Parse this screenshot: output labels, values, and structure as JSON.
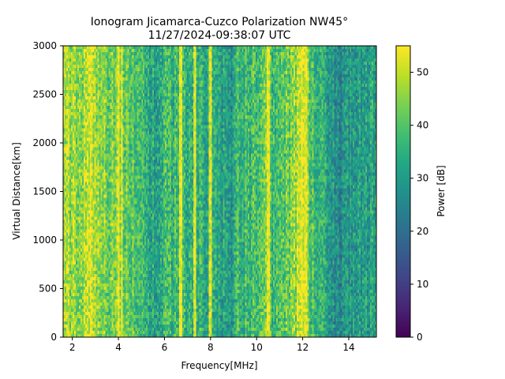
{
  "chart_data": {
    "type": "heatmap",
    "title": [
      "Ionogram Jicamarca-Cuzco Polarization NW45°",
      "11/27/2024-09:38:07 UTC"
    ],
    "xlabel": "Frequency[MHz]",
    "ylabel": "Virtual Distance[km]",
    "xlim": [
      1.6,
      15.2
    ],
    "ylim": [
      0,
      3000
    ],
    "xticks": [
      2,
      4,
      6,
      8,
      10,
      12,
      14
    ],
    "xtick_labels": [
      "2",
      "4",
      "6",
      "8",
      "10",
      "12",
      "14"
    ],
    "yticks": [
      0,
      500,
      1000,
      1500,
      2000,
      2500,
      3000
    ],
    "ytick_labels": [
      "0",
      "500",
      "1000",
      "1500",
      "2000",
      "2500",
      "3000"
    ],
    "colorbar": {
      "label": "Power [dB]",
      "range": [
        0,
        55
      ],
      "ticks": [
        0,
        10,
        20,
        30,
        40,
        50
      ],
      "tick_labels": [
        "0",
        "10",
        "20",
        "30",
        "40",
        "50"
      ],
      "colormap": "viridis"
    },
    "band_power_profile": {
      "frequency_mhz": [
        1.6,
        2.0,
        2.4,
        2.8,
        3.0,
        3.4,
        3.8,
        4.0,
        4.2,
        4.6,
        5.0,
        5.3,
        5.6,
        5.9,
        6.0,
        6.3,
        6.6,
        7.0,
        7.3,
        7.6,
        7.9,
        8.0,
        8.3,
        8.6,
        8.9,
        9.2,
        9.5,
        9.8,
        10.1,
        10.4,
        10.7,
        11.0,
        11.3,
        11.6,
        11.9,
        12.1,
        12.3,
        12.6,
        12.9,
        13.2,
        13.5,
        13.8,
        14.1,
        14.4,
        14.7,
        15.0,
        15.2
      ],
      "mean_power_db": [
        46,
        47,
        46,
        52,
        47,
        44,
        43,
        48,
        42,
        41,
        38,
        34,
        30,
        32,
        40,
        36,
        38,
        33,
        36,
        35,
        31,
        40,
        30,
        33,
        29,
        38,
        37,
        36,
        40,
        44,
        38,
        40,
        42,
        44,
        53,
        52,
        40,
        36,
        34,
        30,
        25,
        29,
        30,
        31,
        30,
        33,
        32
      ]
    },
    "strong_lines_mhz": [
      2.8,
      4.0,
      4.15,
      6.7,
      7.3,
      8.0,
      10.5,
      11.95,
      12.05,
      12.15
    ]
  }
}
